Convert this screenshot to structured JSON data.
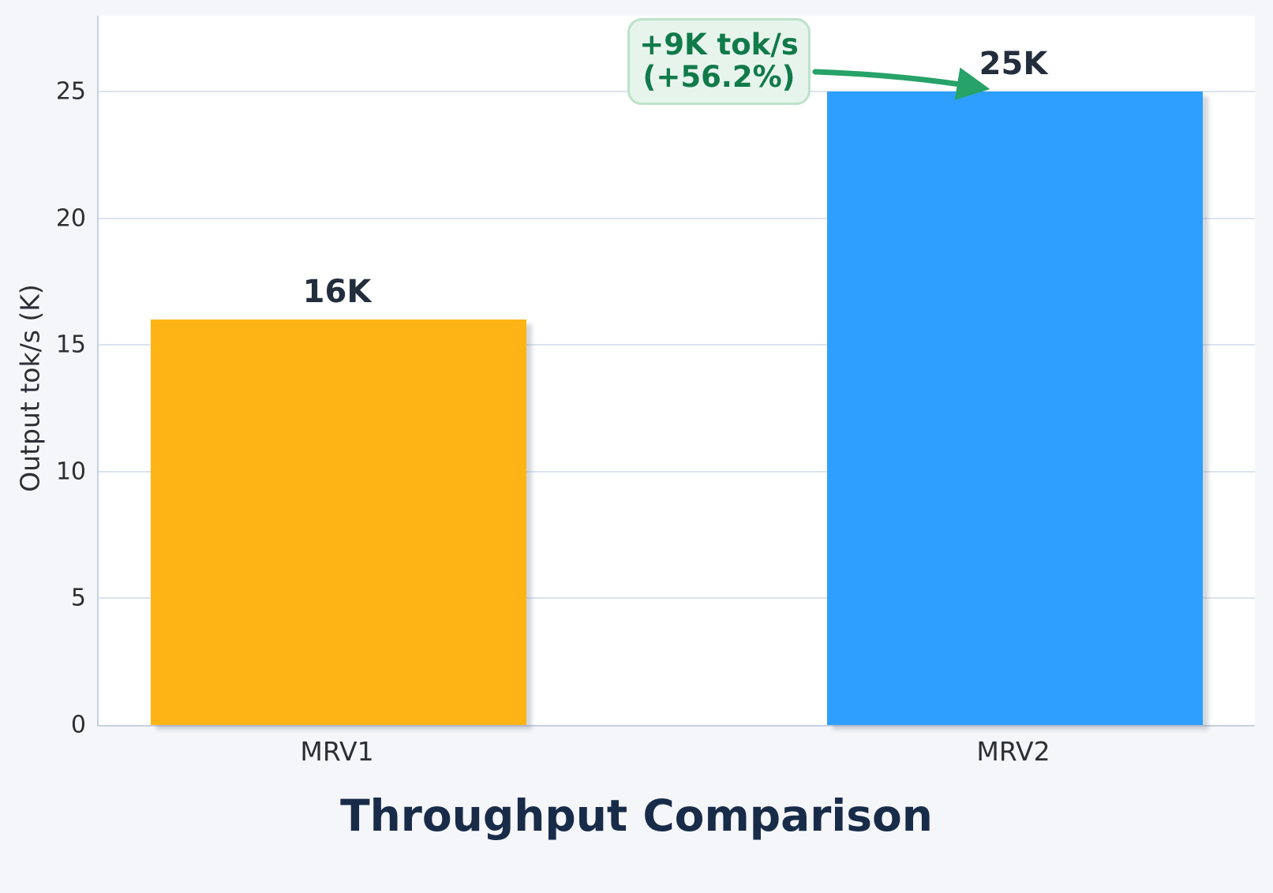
{
  "chart_data": {
    "type": "bar",
    "title": "Throughput Comparison",
    "xlabel": "",
    "ylabel": "Output tok/s (K)",
    "categories": [
      "MRV1",
      "MRV2"
    ],
    "values": [
      16,
      25
    ],
    "value_labels": [
      "16K",
      "25K"
    ],
    "bar_colors": [
      "#feb415",
      "#2e9fff"
    ],
    "yticks": [
      0,
      5,
      10,
      15,
      20,
      25
    ],
    "ylim": [
      0,
      28
    ],
    "grid": true,
    "legend_position": "none",
    "annotation": {
      "line1": "+9K tok/s",
      "line2": "(+56.2%)",
      "points_to": "MRV2",
      "text_color": "#117a4a",
      "box_fill": "#e7f4ec",
      "box_border": "#bce2ca",
      "arrow_color": "#27a268"
    },
    "colors": {
      "figure_background": "#f5f6fa",
      "plot_background": "#ffffff",
      "gridline": "#dce3f0",
      "spine": "#c7cfe2",
      "title_text": "#182c49",
      "value_label_text": "#232e3d",
      "tick_text": "#2b2f36"
    }
  }
}
